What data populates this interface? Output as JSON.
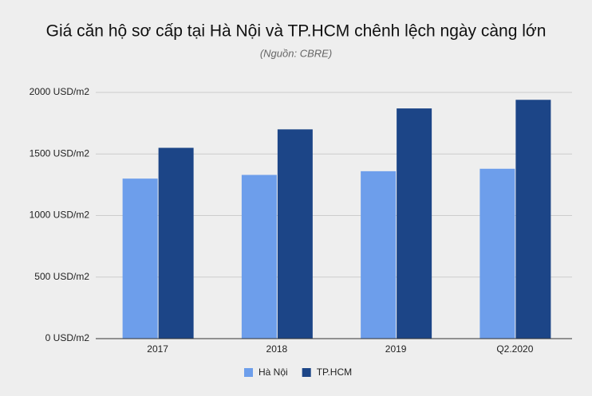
{
  "chart_data": {
    "type": "bar",
    "title": "Giá căn hộ sơ cấp tại Hà Nội và TP.HCM chênh lệch ngày càng lớn",
    "subtitle": "(Nguồn: CBRE)",
    "categories": [
      "2017",
      "2018",
      "2019",
      "Q2.2020"
    ],
    "series": [
      {
        "name": "Hà Nội",
        "color": "#6d9eeb",
        "values": [
          1300,
          1330,
          1360,
          1380
        ]
      },
      {
        "name": "TP.HCM",
        "color": "#1c4587",
        "values": [
          1550,
          1700,
          1870,
          1940
        ]
      }
    ],
    "ylim": [
      0,
      2000
    ],
    "yticks": [
      {
        "value": 0,
        "label": "0 USD/m2"
      },
      {
        "value": 500,
        "label": "500 USD/m2"
      },
      {
        "value": 1000,
        "label": "1000 USD/m2"
      },
      {
        "value": 1500,
        "label": "1500 USD/m2"
      },
      {
        "value": 2000,
        "label": "2000 USD/m2"
      }
    ],
    "grid": true
  }
}
